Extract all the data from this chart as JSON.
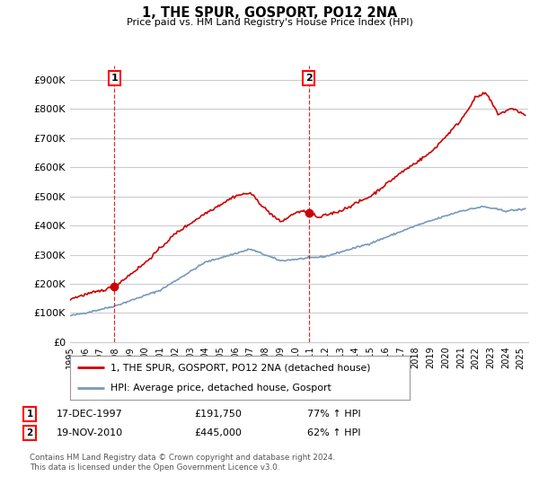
{
  "title": "1, THE SPUR, GOSPORT, PO12 2NA",
  "subtitle": "Price paid vs. HM Land Registry's House Price Index (HPI)",
  "ylim": [
    0,
    950000
  ],
  "yticks": [
    0,
    100000,
    200000,
    300000,
    400000,
    500000,
    600000,
    700000,
    800000,
    900000
  ],
  "ytick_labels": [
    "£0",
    "£100K",
    "£200K",
    "£300K",
    "£400K",
    "£500K",
    "£600K",
    "£700K",
    "£800K",
    "£900K"
  ],
  "sale1": {
    "date": "17-DEC-1997",
    "price": 191750,
    "label": "77% ↑ HPI",
    "marker_x": 1997.96
  },
  "sale2": {
    "date": "19-NOV-2010",
    "price": 445000,
    "label": "62% ↑ HPI",
    "marker_x": 2010.88
  },
  "legend_line1": "1, THE SPUR, GOSPORT, PO12 2NA (detached house)",
  "legend_line2": "HPI: Average price, detached house, Gosport",
  "footnote": "Contains HM Land Registry data © Crown copyright and database right 2024.\nThis data is licensed under the Open Government Licence v3.0.",
  "line_color_red": "#cc0000",
  "line_color_blue": "#7799bb",
  "background_color": "#ffffff",
  "grid_color": "#cccccc",
  "xlim_start": 1995.0,
  "xlim_end": 2025.5
}
